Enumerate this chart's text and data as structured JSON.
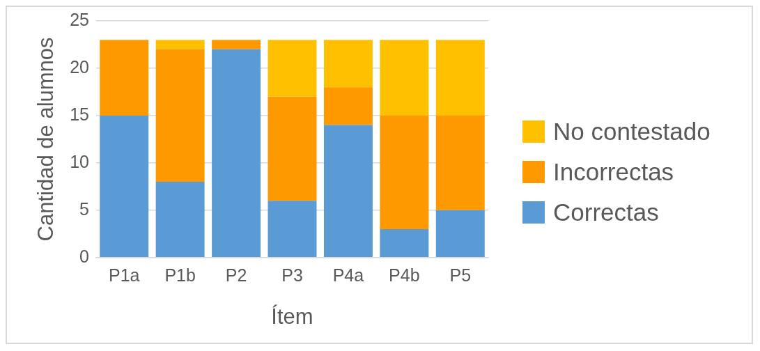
{
  "chart_data": {
    "type": "bar",
    "stacked": true,
    "xlabel": "Ítem",
    "ylabel": "Cantidad de alumnos",
    "categories": [
      "P1a",
      "P1b",
      "P2",
      "P3",
      "P4a",
      "P4b",
      "P5"
    ],
    "series": [
      {
        "name": "Correctas",
        "color": "#5b9bd5",
        "values": [
          15,
          8,
          22,
          6,
          14,
          3,
          5
        ]
      },
      {
        "name": "Incorrectas",
        "color": "#ff9900",
        "values": [
          8,
          14,
          1,
          11,
          4,
          12,
          10
        ]
      },
      {
        "name": "No contestado",
        "color": "#ffc000",
        "values": [
          0,
          1,
          0,
          6,
          5,
          8,
          8
        ]
      }
    ],
    "ylim": [
      0,
      25
    ],
    "yticks": [
      0,
      5,
      10,
      15,
      20,
      25
    ],
    "grid": "y",
    "legend": "right"
  }
}
